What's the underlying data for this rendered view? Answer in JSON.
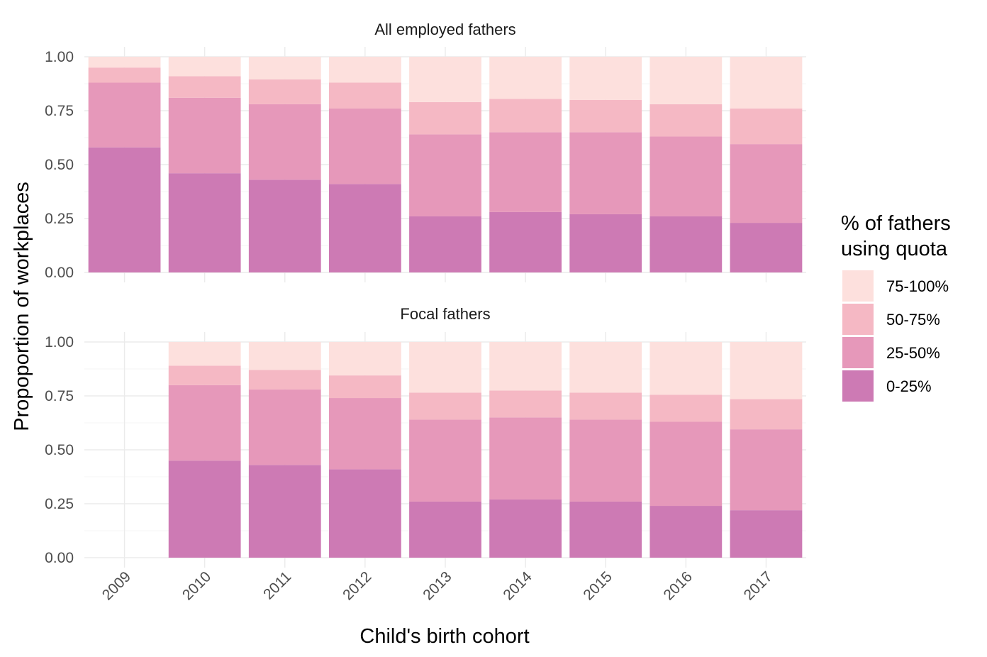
{
  "chart_data": {
    "type": "bar",
    "stacked": true,
    "ylabel": "Propoportion of workplaces",
    "xlabel": "Child's birth cohort",
    "categories": [
      "2009",
      "2010",
      "2011",
      "2012",
      "2013",
      "2014",
      "2015",
      "2016",
      "2017"
    ],
    "yticks": [
      "0.00",
      "0.25",
      "0.50",
      "0.75",
      "1.00"
    ],
    "ylim": [
      0,
      1
    ],
    "legend": {
      "title_lines": [
        "% of fathers",
        "using quota"
      ],
      "position": "right",
      "entries": [
        {
          "label": "75-100%",
          "color": "#fde0dd"
        },
        {
          "label": "50-75%",
          "color": "#f5b8c4"
        },
        {
          "label": "25-50%",
          "color": "#e698ba"
        },
        {
          "label": "0-25%",
          "color": "#cd7ab4"
        }
      ]
    },
    "panels": [
      {
        "title": "All employed fathers",
        "series": [
          {
            "name": "0-25%",
            "color": "#cd7ab4",
            "values": [
              0.58,
              0.46,
              0.43,
              0.41,
              0.26,
              0.28,
              0.27,
              0.26,
              0.23
            ]
          },
          {
            "name": "25-50%",
            "color": "#e698ba",
            "values": [
              0.3,
              0.35,
              0.35,
              0.35,
              0.38,
              0.37,
              0.38,
              0.37,
              0.365
            ]
          },
          {
            "name": "50-75%",
            "color": "#f5b8c4",
            "values": [
              0.07,
              0.1,
              0.115,
              0.12,
              0.15,
              0.155,
              0.15,
              0.15,
              0.165
            ]
          },
          {
            "name": "75-100%",
            "color": "#fde0dd",
            "values": [
              0.05,
              0.09,
              0.105,
              0.12,
              0.21,
              0.195,
              0.2,
              0.22,
              0.24
            ]
          }
        ]
      },
      {
        "title": "Focal fathers",
        "series": [
          {
            "name": "0-25%",
            "color": "#cd7ab4",
            "values": [
              null,
              0.45,
              0.43,
              0.41,
              0.26,
              0.27,
              0.26,
              0.24,
              0.22
            ]
          },
          {
            "name": "25-50%",
            "color": "#e698ba",
            "values": [
              null,
              0.35,
              0.35,
              0.33,
              0.38,
              0.38,
              0.38,
              0.39,
              0.375
            ]
          },
          {
            "name": "50-75%",
            "color": "#f5b8c4",
            "values": [
              null,
              0.09,
              0.09,
              0.105,
              0.125,
              0.125,
              0.125,
              0.125,
              0.14
            ]
          },
          {
            "name": "75-100%",
            "color": "#fde0dd",
            "values": [
              null,
              0.11,
              0.13,
              0.155,
              0.235,
              0.225,
              0.235,
              0.245,
              0.265
            ]
          }
        ]
      }
    ],
    "grid": true
  }
}
